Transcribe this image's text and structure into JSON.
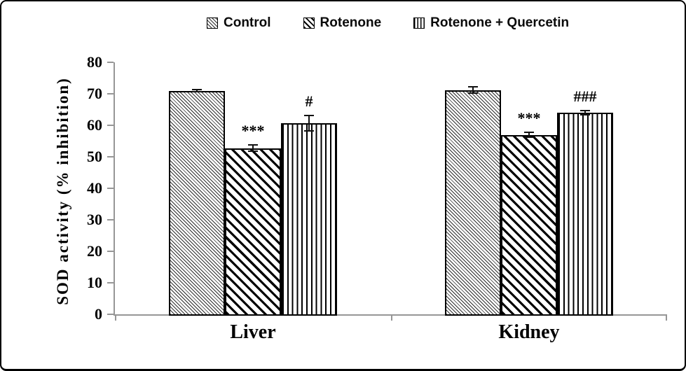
{
  "figure": {
    "background": "#ffffff",
    "border_color": "#000000",
    "axis_color": "#969696",
    "bar_outline_color": "#000000"
  },
  "chart_data": {
    "type": "bar",
    "title": "",
    "xlabel": "",
    "ylabel": "SOD activity (% inhibition)",
    "ylim": [
      0,
      80
    ],
    "ytick_step": 10,
    "yticks": [
      0,
      10,
      20,
      30,
      40,
      50,
      60,
      70,
      80
    ],
    "grid": false,
    "legend_position": "top",
    "categories": [
      "Liver",
      "Kidney"
    ],
    "series": [
      {
        "name": "Control",
        "pattern": "control",
        "pattern_desc": "fine backslash diagonal hatch",
        "values": [
          71.0,
          71.2
        ],
        "errors": [
          0.3,
          1.0
        ],
        "annotations": [
          "",
          ""
        ]
      },
      {
        "name": "Rotenone",
        "pattern": "rotenone",
        "pattern_desc": "wide backslash diagonal stripes",
        "values": [
          52.7,
          57.0
        ],
        "errors": [
          1.0,
          0.8
        ],
        "annotations": [
          "***",
          "***"
        ]
      },
      {
        "name": "Rotenone + Quercetin",
        "pattern": "rq",
        "pattern_desc": "vertical stripes",
        "values": [
          60.7,
          64.0
        ],
        "errors": [
          2.5,
          0.7
        ],
        "annotations": [
          "#",
          "###"
        ]
      }
    ]
  }
}
